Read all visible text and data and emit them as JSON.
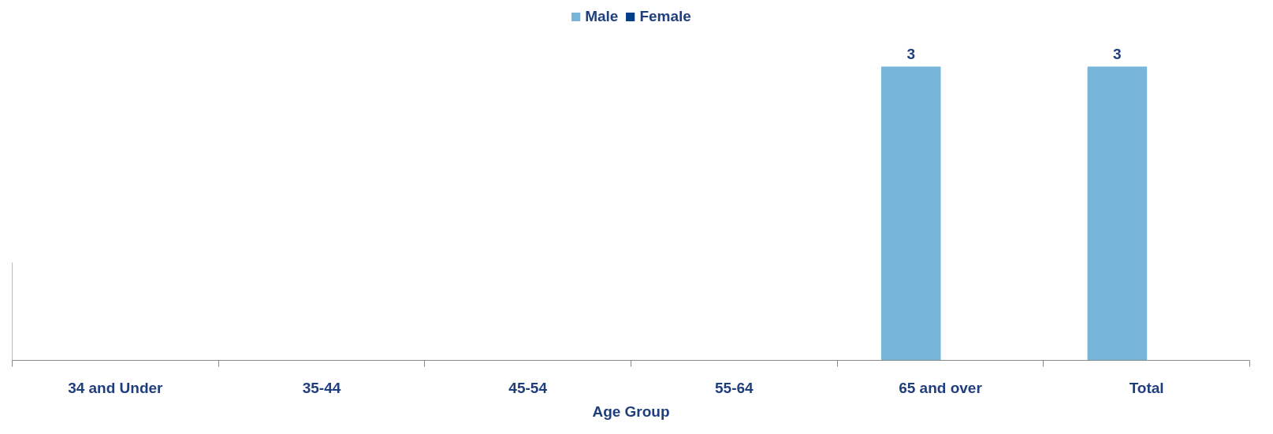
{
  "chart_data": {
    "type": "bar",
    "xlabel": "Age Group",
    "categories": [
      "34 and Under",
      "35-44",
      "45-54",
      "55-64",
      "65 and over",
      "Total"
    ],
    "series": [
      {
        "name": "Male",
        "color": "#77b5d9",
        "values": [
          null,
          null,
          null,
          null,
          3,
          3
        ]
      },
      {
        "name": "Female",
        "color": "#003f87",
        "values": [
          null,
          null,
          null,
          null,
          null,
          null
        ]
      }
    ],
    "data_labels": true,
    "legend": "top"
  }
}
